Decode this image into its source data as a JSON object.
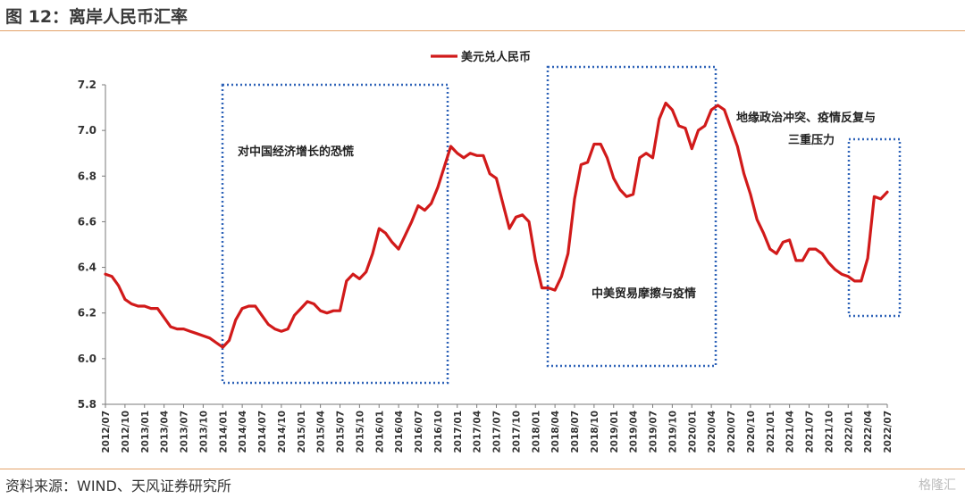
{
  "header": {
    "title": "图 12：离岸人民币汇率"
  },
  "footer": {
    "source": "资料来源：WIND、天风证券研究所",
    "watermark": "格隆汇"
  },
  "chart_data": {
    "type": "line",
    "legend": {
      "placement": "top-center"
    },
    "ylim": [
      5.8,
      7.2
    ],
    "yticks": [
      "7.2",
      "7.0",
      "6.8",
      "6.6",
      "6.4",
      "6.2",
      "6.0",
      "5.8"
    ],
    "x_labels": [
      "2012/07",
      "2012/10",
      "2013/01",
      "2013/04",
      "2013/07",
      "2013/10",
      "2014/01",
      "2014/04",
      "2014/07",
      "2014/10",
      "2015/01",
      "2015/04",
      "2015/07",
      "2015/10",
      "2016/01",
      "2016/04",
      "2016/07",
      "2016/10",
      "2017/01",
      "2017/04",
      "2017/07",
      "2017/10",
      "2018/01",
      "2018/04",
      "2018/07",
      "2018/10",
      "2019/01",
      "2019/04",
      "2019/07",
      "2019/10",
      "2020/01",
      "2020/04",
      "2020/07",
      "2020/10",
      "2021/01",
      "2021/04",
      "2021/07",
      "2021/10",
      "2022/01",
      "2022/04",
      "2022/07"
    ],
    "series": [
      {
        "name": "美元兑人民币",
        "color": "#d11a1a",
        "values": [
          6.37,
          6.36,
          6.32,
          6.26,
          6.24,
          6.23,
          6.23,
          6.22,
          6.22,
          6.18,
          6.14,
          6.13,
          6.13,
          6.12,
          6.11,
          6.1,
          6.09,
          6.07,
          6.05,
          6.08,
          6.17,
          6.22,
          6.23,
          6.23,
          6.19,
          6.15,
          6.13,
          6.12,
          6.13,
          6.19,
          6.22,
          6.25,
          6.24,
          6.21,
          6.2,
          6.21,
          6.21,
          6.34,
          6.37,
          6.35,
          6.38,
          6.46,
          6.57,
          6.55,
          6.51,
          6.48,
          6.54,
          6.6,
          6.67,
          6.65,
          6.68,
          6.75,
          6.84,
          6.93,
          6.9,
          6.88,
          6.9,
          6.89,
          6.89,
          6.81,
          6.79,
          6.68,
          6.57,
          6.62,
          6.63,
          6.6,
          6.43,
          6.31,
          6.31,
          6.3,
          6.36,
          6.46,
          6.7,
          6.85,
          6.86,
          6.94,
          6.94,
          6.88,
          6.79,
          6.74,
          6.71,
          6.72,
          6.88,
          6.9,
          6.88,
          7.05,
          7.12,
          7.09,
          7.02,
          7.01,
          6.92,
          7.0,
          7.02,
          7.09,
          7.11,
          7.09,
          7.01,
          6.93,
          6.81,
          6.72,
          6.61,
          6.55,
          6.48,
          6.46,
          6.51,
          6.52,
          6.43,
          6.43,
          6.48,
          6.48,
          6.46,
          6.42,
          6.39,
          6.37,
          6.36,
          6.34,
          6.34,
          6.44,
          6.71,
          6.7,
          6.73
        ]
      }
    ],
    "annotations": [
      {
        "text": "对中国经济增长的恐慌"
      },
      {
        "text": "中美贸易摩擦与疫情"
      },
      {
        "lines": [
          "地缘政治冲突、疫情反复与",
          "三重压力"
        ]
      }
    ],
    "box_color": "#2f63b8"
  }
}
